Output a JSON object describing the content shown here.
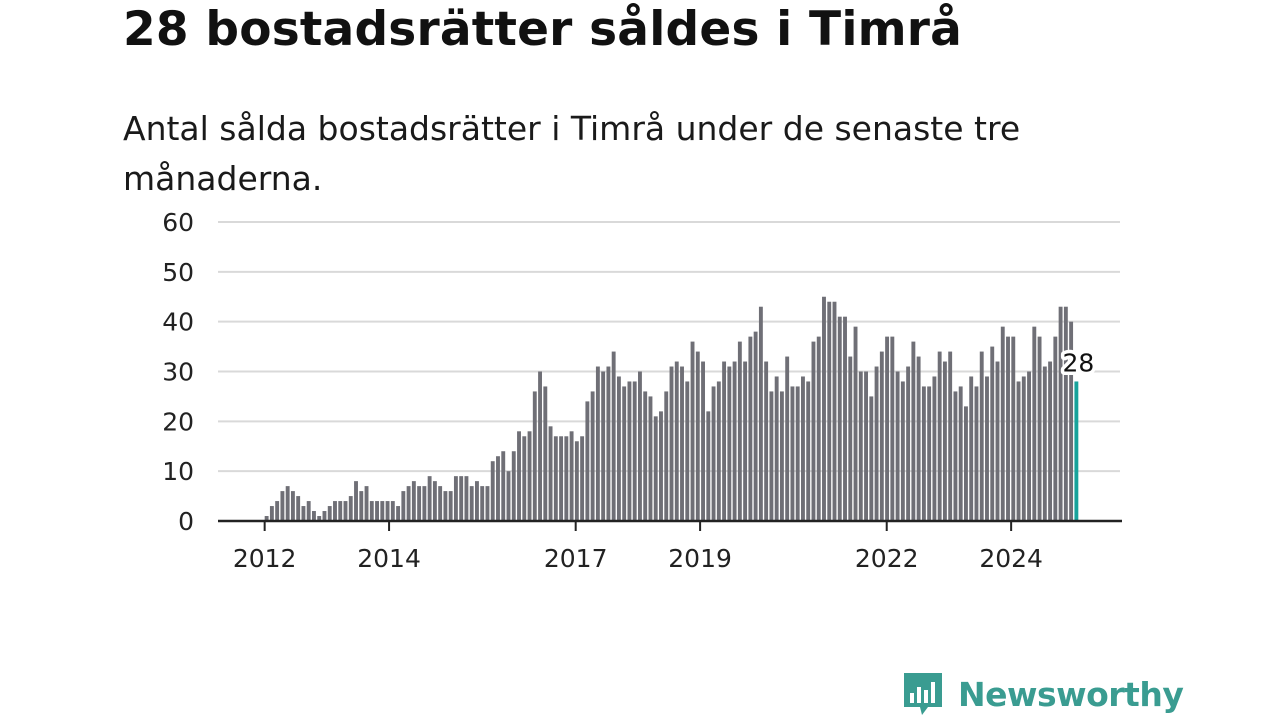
{
  "header": {
    "title": "28 bostadsrätter såldes i Timrå",
    "subtitle": "Antal sålda bostadsrätter i Timrå under de senaste tre månaderna."
  },
  "brand": {
    "name": "Newsworthy",
    "icon": "newsworthy-chat-bar-icon"
  },
  "colors": {
    "bar": "#6f6f76",
    "highlight": "#18a39b",
    "grid": "#d9d9d9",
    "axis": "#222222",
    "brand": "#3a9c91"
  },
  "chart_data": {
    "type": "bar",
    "title": "",
    "xlabel": "",
    "ylabel": "",
    "ylim": [
      0,
      60
    ],
    "yticks": [
      0,
      10,
      20,
      30,
      40,
      50,
      60
    ],
    "grid": true,
    "xlim": [
      2011.25,
      2025.75
    ],
    "xticks": [
      {
        "x": 2012,
        "label": "2012"
      },
      {
        "x": 2014,
        "label": "2014"
      },
      {
        "x": 2017,
        "label": "2017"
      },
      {
        "x": 2019,
        "label": "2019"
      },
      {
        "x": 2022,
        "label": "2022"
      },
      {
        "x": 2024,
        "label": "2024"
      }
    ],
    "series": [
      {
        "start": "2012-01",
        "step": "quarterly-rolling-monthly",
        "values": [
          1,
          3,
          4,
          6,
          7,
          6,
          5,
          3,
          4,
          2,
          1,
          2,
          3,
          4,
          4,
          4,
          5,
          8,
          6,
          7,
          4,
          4,
          4,
          4,
          4,
          3,
          6,
          7,
          8,
          7,
          7,
          9,
          8,
          7,
          6,
          6,
          9,
          9,
          9,
          7,
          8,
          7,
          7,
          12,
          13,
          14,
          10,
          14,
          18,
          17,
          18,
          26,
          30,
          27,
          19,
          17,
          17,
          17,
          18,
          16,
          17,
          24,
          26,
          31,
          30,
          31,
          34,
          29,
          27,
          28,
          28,
          30,
          26,
          25,
          21,
          22,
          26,
          31,
          32,
          31,
          28,
          36,
          34,
          32,
          22,
          27,
          28,
          32,
          31,
          32,
          36,
          32,
          37,
          38,
          43,
          32,
          26,
          29,
          26,
          33,
          27,
          27,
          29,
          28,
          36,
          37,
          45,
          44,
          44,
          41,
          41,
          33,
          39,
          30,
          30,
          25,
          31,
          34,
          37,
          37,
          30,
          28,
          31,
          36,
          33,
          27,
          27,
          29,
          34,
          32,
          34,
          26,
          27,
          23,
          29,
          27,
          34,
          29,
          35,
          32,
          39,
          37,
          37,
          28,
          29,
          30,
          39,
          37,
          31,
          32,
          37,
          43,
          43,
          40,
          28
        ]
      }
    ],
    "annotations": [
      {
        "label": "28",
        "target": "last"
      }
    ]
  }
}
